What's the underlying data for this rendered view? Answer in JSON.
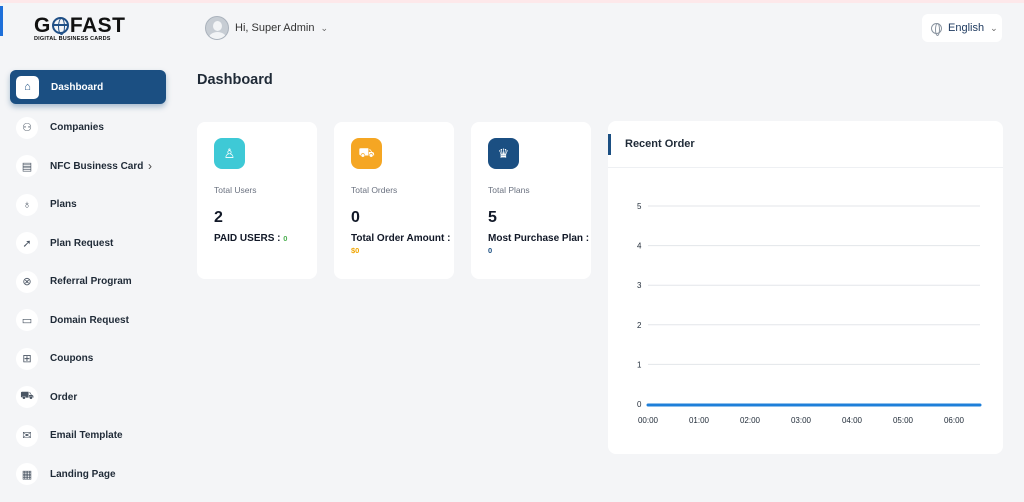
{
  "header": {
    "logo_main": "GOFAST",
    "logo_sub": "DIGITAL BUSINESS CARDS",
    "greeting": "Hi, Super Admin",
    "language": "English"
  },
  "sidebar": {
    "items": [
      {
        "label": "Dashboard",
        "icon": "home-icon",
        "glyph": "⌂",
        "active": true
      },
      {
        "label": "Companies",
        "icon": "users-icon",
        "glyph": "⚇"
      },
      {
        "label": "NFC Business Card",
        "icon": "nfc-icon",
        "glyph": "▤",
        "has_submenu": true
      },
      {
        "label": "Plans",
        "icon": "badge-icon",
        "glyph": "♁"
      },
      {
        "label": "Plan Request",
        "icon": "send-icon",
        "glyph": "➚"
      },
      {
        "label": "Referral Program",
        "icon": "referral-icon",
        "glyph": "⊗"
      },
      {
        "label": "Domain Request",
        "icon": "browser-icon",
        "glyph": "▭"
      },
      {
        "label": "Coupons",
        "icon": "gift-icon",
        "glyph": "⊞"
      },
      {
        "label": "Order",
        "icon": "cart-icon",
        "glyph": "⛟"
      },
      {
        "label": "Email Template",
        "icon": "mail-icon",
        "glyph": "✉"
      },
      {
        "label": "Landing Page",
        "icon": "page-icon",
        "glyph": "▦"
      }
    ]
  },
  "main": {
    "title": "Dashboard",
    "cards": [
      {
        "label": "Total Users",
        "value": "2",
        "sub_label": "PAID USERS :",
        "sub_value": "0",
        "sub_color": "#4caf50",
        "icon": "user-icon",
        "glyph": "♙",
        "icon_bg": "#3ec9d6"
      },
      {
        "label": "Total Orders",
        "value": "0",
        "sub_label": "Total Order Amount :",
        "sub_value": "$0",
        "sub_color": "#f0a500",
        "icon": "cart-icon",
        "glyph": "⛟",
        "icon_bg": "#f5a623"
      },
      {
        "label": "Total Plans",
        "value": "5",
        "sub_label": "Most Purchase Plan :",
        "sub_value": "0",
        "sub_color": "#1b4f82",
        "icon": "trophy-icon",
        "glyph": "♛",
        "icon_bg": "#1b4f82"
      }
    ]
  },
  "chart": {
    "title": "Recent Order"
  },
  "chart_data": {
    "type": "line",
    "x": [
      "00:00",
      "01:00",
      "02:00",
      "03:00",
      "04:00",
      "05:00",
      "06:00"
    ],
    "series": [
      {
        "values": [
          0,
          0,
          0,
          0,
          0,
          0,
          0
        ],
        "color": "#1e7fd9"
      }
    ],
    "ylim": [
      0,
      5
    ],
    "yticks": [
      0,
      1,
      2,
      3,
      4,
      5
    ],
    "grid": true
  }
}
